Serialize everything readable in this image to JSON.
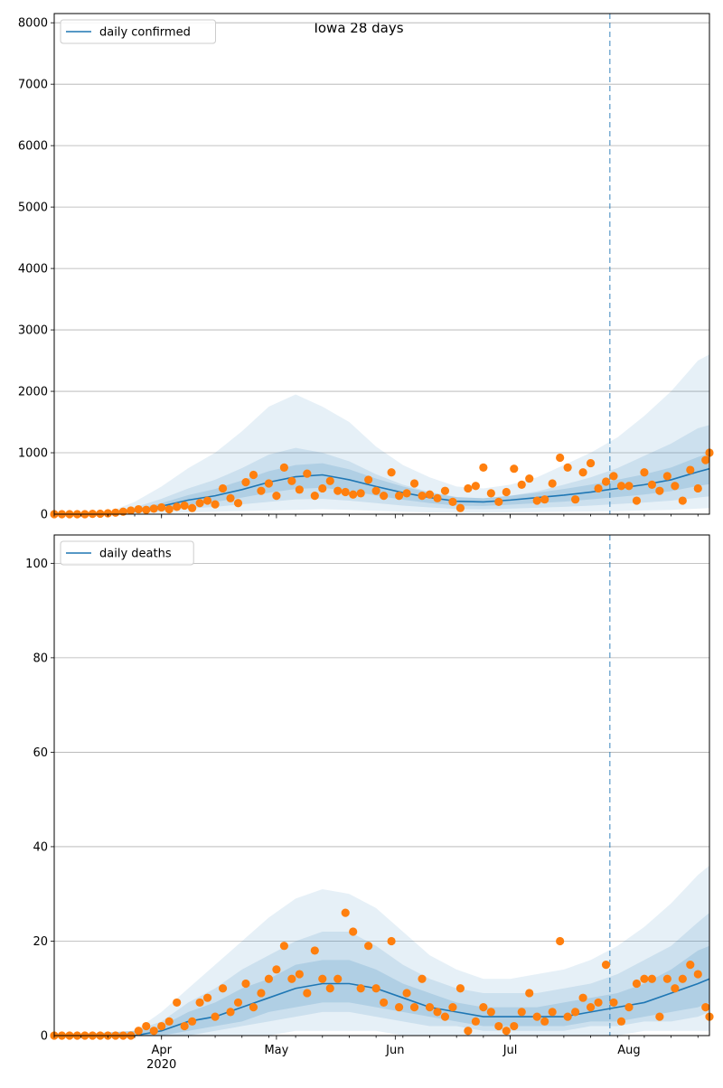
{
  "figure_title": "Iowa 28 days",
  "x_ticks": [
    {
      "date": "2020-04-01",
      "label": "Apr",
      "sublabel": "2020"
    },
    {
      "date": "2020-05-01",
      "label": "May",
      "sublabel": ""
    },
    {
      "date": "2020-06-01",
      "label": "Jun",
      "sublabel": ""
    },
    {
      "date": "2020-07-01",
      "label": "Jul",
      "sublabel": ""
    },
    {
      "date": "2020-08-01",
      "label": "Aug",
      "sublabel": ""
    }
  ],
  "forecast_start": "2020-07-27",
  "colors": {
    "model": "#1f77b4",
    "observed": "#ff7f0e",
    "band": "#1f77b4",
    "grid": "#b0b0b0"
  },
  "chart_data": [
    {
      "type": "line",
      "legend": "daily confirmed",
      "legend_position": "upper-left",
      "x_range": [
        "2020-03-04",
        "2020-08-22"
      ],
      "ylim": [
        0,
        8150
      ],
      "yticks": [
        0,
        1000,
        2000,
        3000,
        4000,
        5000,
        6000,
        7000,
        8000
      ],
      "grid": "horizontal",
      "model_median": {
        "x": [
          "2020-03-04",
          "2020-03-18",
          "2020-03-25",
          "2020-04-01",
          "2020-04-08",
          "2020-04-15",
          "2020-04-22",
          "2020-04-29",
          "2020-05-06",
          "2020-05-13",
          "2020-05-20",
          "2020-05-27",
          "2020-06-03",
          "2020-06-10",
          "2020-06-17",
          "2020-06-24",
          "2020-07-01",
          "2020-07-08",
          "2020-07-15",
          "2020-07-22",
          "2020-07-29",
          "2020-08-05",
          "2020-08-12",
          "2020-08-19",
          "2020-08-22"
        ],
        "y": [
          0,
          10,
          50,
          130,
          230,
          300,
          400,
          520,
          610,
          640,
          560,
          450,
          350,
          270,
          210,
          200,
          230,
          270,
          310,
          360,
          420,
          480,
          560,
          690,
          740
        ]
      },
      "bands": [
        {
          "level": "outer",
          "x": [
            "2020-03-04",
            "2020-03-18",
            "2020-03-25",
            "2020-04-01",
            "2020-04-08",
            "2020-04-15",
            "2020-04-22",
            "2020-04-29",
            "2020-05-06",
            "2020-05-13",
            "2020-05-20",
            "2020-05-27",
            "2020-06-03",
            "2020-06-10",
            "2020-06-17",
            "2020-06-24",
            "2020-07-01",
            "2020-07-08",
            "2020-07-15",
            "2020-07-22",
            "2020-07-29",
            "2020-08-05",
            "2020-08-12",
            "2020-08-19",
            "2020-08-22"
          ],
          "low": [
            0,
            0,
            5,
            15,
            30,
            40,
            50,
            60,
            70,
            80,
            70,
            55,
            40,
            30,
            25,
            25,
            30,
            35,
            40,
            45,
            50,
            60,
            70,
            90,
            100
          ],
          "high": [
            0,
            30,
            200,
            450,
            750,
            1000,
            1350,
            1750,
            1950,
            1750,
            1500,
            1100,
            800,
            600,
            450,
            420,
            480,
            600,
            800,
            1000,
            1250,
            1600,
            2000,
            2500,
            2600
          ]
        },
        {
          "level": "middle",
          "x": [
            "2020-03-04",
            "2020-03-18",
            "2020-03-25",
            "2020-04-01",
            "2020-04-08",
            "2020-04-15",
            "2020-04-22",
            "2020-04-29",
            "2020-05-06",
            "2020-05-13",
            "2020-05-20",
            "2020-05-27",
            "2020-06-03",
            "2020-06-10",
            "2020-06-17",
            "2020-06-24",
            "2020-07-01",
            "2020-07-08",
            "2020-07-15",
            "2020-07-22",
            "2020-07-29",
            "2020-08-05",
            "2020-08-12",
            "2020-08-19",
            "2020-08-22"
          ],
          "low": [
            0,
            0,
            15,
            50,
            90,
            120,
            160,
            200,
            240,
            250,
            220,
            180,
            140,
            110,
            85,
            80,
            90,
            105,
            120,
            140,
            165,
            190,
            220,
            270,
            290
          ],
          "high": [
            0,
            20,
            110,
            250,
            420,
            560,
            750,
            970,
            1080,
            1000,
            860,
            650,
            480,
            360,
            280,
            260,
            300,
            370,
            480,
            600,
            750,
            950,
            1150,
            1400,
            1450
          ]
        },
        {
          "level": "inner",
          "x": [
            "2020-03-04",
            "2020-03-18",
            "2020-03-25",
            "2020-04-01",
            "2020-04-08",
            "2020-04-15",
            "2020-04-22",
            "2020-04-29",
            "2020-05-06",
            "2020-05-13",
            "2020-05-20",
            "2020-05-27",
            "2020-06-03",
            "2020-06-10",
            "2020-06-17",
            "2020-06-24",
            "2020-07-01",
            "2020-07-08",
            "2020-07-15",
            "2020-07-22",
            "2020-07-29",
            "2020-08-05",
            "2020-08-12",
            "2020-08-19",
            "2020-08-22"
          ],
          "low": [
            0,
            5,
            30,
            85,
            150,
            200,
            270,
            350,
            410,
            430,
            380,
            305,
            235,
            180,
            140,
            135,
            155,
            180,
            205,
            240,
            280,
            320,
            375,
            460,
            490
          ],
          "high": [
            0,
            15,
            75,
            180,
            310,
            410,
            550,
            700,
            800,
            830,
            730,
            580,
            450,
            350,
            275,
            260,
            300,
            350,
            410,
            480,
            560,
            650,
            760,
            930,
            990
          ]
        }
      ],
      "observed": {
        "x": [
          "2020-03-04",
          "2020-03-06",
          "2020-03-08",
          "2020-03-10",
          "2020-03-12",
          "2020-03-14",
          "2020-03-16",
          "2020-03-18",
          "2020-03-20",
          "2020-03-22",
          "2020-03-24",
          "2020-03-26",
          "2020-03-28",
          "2020-03-30",
          "2020-04-01",
          "2020-04-03",
          "2020-04-05",
          "2020-04-07",
          "2020-04-09",
          "2020-04-11",
          "2020-04-13",
          "2020-04-15",
          "2020-04-17",
          "2020-04-19",
          "2020-04-21",
          "2020-04-23",
          "2020-04-25",
          "2020-04-27",
          "2020-04-29",
          "2020-05-01",
          "2020-05-03",
          "2020-05-05",
          "2020-05-07",
          "2020-05-09",
          "2020-05-11",
          "2020-05-13",
          "2020-05-15",
          "2020-05-17",
          "2020-05-19",
          "2020-05-21",
          "2020-05-23",
          "2020-05-25",
          "2020-05-27",
          "2020-05-29",
          "2020-05-31",
          "2020-06-02",
          "2020-06-04",
          "2020-06-06",
          "2020-06-08",
          "2020-06-10",
          "2020-06-12",
          "2020-06-14",
          "2020-06-16",
          "2020-06-18",
          "2020-06-20",
          "2020-06-22",
          "2020-06-24",
          "2020-06-26",
          "2020-06-28",
          "2020-06-30",
          "2020-07-02",
          "2020-07-04",
          "2020-07-06",
          "2020-07-08",
          "2020-07-10",
          "2020-07-12",
          "2020-07-14",
          "2020-07-16",
          "2020-07-18",
          "2020-07-20",
          "2020-07-22",
          "2020-07-24",
          "2020-07-26",
          "2020-07-28",
          "2020-07-30",
          "2020-08-01",
          "2020-08-03",
          "2020-08-05",
          "2020-08-07",
          "2020-08-09",
          "2020-08-11",
          "2020-08-13",
          "2020-08-15",
          "2020-08-17",
          "2020-08-19",
          "2020-08-21",
          "2020-08-22"
        ],
        "y": [
          0,
          0,
          0,
          0,
          0,
          5,
          8,
          15,
          25,
          40,
          60,
          80,
          70,
          90,
          110,
          80,
          120,
          140,
          100,
          180,
          220,
          160,
          420,
          260,
          180,
          520,
          640,
          380,
          500,
          300,
          760,
          540,
          400,
          660,
          300,
          420,
          540,
          380,
          360,
          320,
          340,
          560,
          380,
          300,
          680,
          300,
          340,
          500,
          300,
          320,
          260,
          380,
          200,
          100,
          420,
          460,
          760,
          340,
          200,
          360,
          740,
          480,
          580,
          220,
          240,
          500,
          920,
          760,
          240,
          680,
          830,
          420,
          530,
          620,
          460,
          460,
          220,
          680,
          480,
          380,
          620,
          460,
          220,
          720,
          420,
          880,
          1000
        ]
      }
    },
    {
      "type": "line",
      "legend": "daily deaths",
      "legend_position": "upper-left",
      "x_range": [
        "2020-03-04",
        "2020-08-22"
      ],
      "ylim": [
        0,
        106
      ],
      "yticks": [
        0,
        20,
        40,
        60,
        80,
        100
      ],
      "grid": "horizontal",
      "model_median": {
        "x": [
          "2020-03-04",
          "2020-03-25",
          "2020-04-01",
          "2020-04-08",
          "2020-04-15",
          "2020-04-22",
          "2020-04-29",
          "2020-05-06",
          "2020-05-13",
          "2020-05-20",
          "2020-05-27",
          "2020-06-03",
          "2020-06-10",
          "2020-06-17",
          "2020-06-24",
          "2020-07-01",
          "2020-07-08",
          "2020-07-15",
          "2020-07-22",
          "2020-07-29",
          "2020-08-05",
          "2020-08-12",
          "2020-08-19",
          "2020-08-22"
        ],
        "y": [
          0,
          0,
          1,
          3,
          4,
          6,
          8,
          10,
          11,
          11,
          10,
          8,
          6,
          5,
          4,
          4,
          4,
          4,
          5,
          6,
          7,
          9,
          11,
          12
        ]
      },
      "bands": [
        {
          "level": "outer",
          "x": [
            "2020-03-04",
            "2020-03-25",
            "2020-04-01",
            "2020-04-08",
            "2020-04-15",
            "2020-04-22",
            "2020-04-29",
            "2020-05-06",
            "2020-05-13",
            "2020-05-20",
            "2020-05-27",
            "2020-06-03",
            "2020-06-10",
            "2020-06-17",
            "2020-06-24",
            "2020-07-01",
            "2020-07-08",
            "2020-07-15",
            "2020-07-22",
            "2020-07-29",
            "2020-08-05",
            "2020-08-12",
            "2020-08-19",
            "2020-08-22"
          ],
          "low": [
            0,
            0,
            0,
            0,
            0,
            0,
            0,
            1,
            1,
            1,
            1,
            0,
            0,
            0,
            0,
            0,
            0,
            0,
            0,
            0,
            1,
            1,
            1,
            1
          ],
          "high": [
            0,
            1,
            5,
            10,
            15,
            20,
            25,
            29,
            31,
            30,
            27,
            22,
            17,
            14,
            12,
            12,
            13,
            14,
            16,
            19,
            23,
            28,
            34,
            36
          ]
        },
        {
          "level": "middle",
          "x": [
            "2020-03-04",
            "2020-03-25",
            "2020-04-01",
            "2020-04-08",
            "2020-04-15",
            "2020-04-22",
            "2020-04-29",
            "2020-05-06",
            "2020-05-13",
            "2020-05-20",
            "2020-05-27",
            "2020-06-03",
            "2020-06-10",
            "2020-06-17",
            "2020-06-24",
            "2020-07-01",
            "2020-07-08",
            "2020-07-15",
            "2020-07-22",
            "2020-07-29",
            "2020-08-05",
            "2020-08-12",
            "2020-08-19",
            "2020-08-22"
          ],
          "low": [
            0,
            0,
            0,
            0,
            1,
            2,
            3,
            4,
            5,
            5,
            4,
            3,
            2,
            2,
            1,
            1,
            1,
            1,
            2,
            2,
            3,
            3,
            4,
            5
          ],
          "high": [
            0,
            1,
            3,
            7,
            10,
            14,
            17,
            20,
            22,
            22,
            19,
            15,
            12,
            10,
            9,
            9,
            9,
            10,
            11,
            13,
            16,
            19,
            24,
            26
          ]
        },
        {
          "level": "inner",
          "x": [
            "2020-03-04",
            "2020-03-25",
            "2020-04-01",
            "2020-04-08",
            "2020-04-15",
            "2020-04-22",
            "2020-04-29",
            "2020-05-06",
            "2020-05-13",
            "2020-05-20",
            "2020-05-27",
            "2020-06-03",
            "2020-06-10",
            "2020-06-17",
            "2020-06-24",
            "2020-07-01",
            "2020-07-08",
            "2020-07-15",
            "2020-07-22",
            "2020-07-29",
            "2020-08-05",
            "2020-08-12",
            "2020-08-19",
            "2020-08-22"
          ],
          "low": [
            0,
            0,
            0,
            1,
            2,
            3,
            5,
            6,
            7,
            7,
            6,
            5,
            4,
            3,
            2,
            2,
            2,
            2,
            3,
            3,
            4,
            5,
            6,
            7
          ],
          "high": [
            0,
            1,
            2,
            5,
            7,
            10,
            12,
            15,
            16,
            16,
            14,
            11,
            9,
            7,
            6,
            6,
            6,
            7,
            8,
            9,
            11,
            14,
            18,
            19
          ]
        }
      ],
      "observed": {
        "x": [
          "2020-03-04",
          "2020-03-06",
          "2020-03-08",
          "2020-03-10",
          "2020-03-12",
          "2020-03-14",
          "2020-03-16",
          "2020-03-18",
          "2020-03-20",
          "2020-03-22",
          "2020-03-24",
          "2020-03-26",
          "2020-03-28",
          "2020-03-30",
          "2020-04-01",
          "2020-04-03",
          "2020-04-05",
          "2020-04-07",
          "2020-04-09",
          "2020-04-11",
          "2020-04-13",
          "2020-04-15",
          "2020-04-17",
          "2020-04-19",
          "2020-04-21",
          "2020-04-23",
          "2020-04-25",
          "2020-04-27",
          "2020-04-29",
          "2020-05-01",
          "2020-05-03",
          "2020-05-05",
          "2020-05-07",
          "2020-05-09",
          "2020-05-11",
          "2020-05-13",
          "2020-05-15",
          "2020-05-17",
          "2020-05-19",
          "2020-05-21",
          "2020-05-23",
          "2020-05-25",
          "2020-05-27",
          "2020-05-29",
          "2020-05-31",
          "2020-06-02",
          "2020-06-04",
          "2020-06-06",
          "2020-06-08",
          "2020-06-10",
          "2020-06-12",
          "2020-06-14",
          "2020-06-16",
          "2020-06-18",
          "2020-06-20",
          "2020-06-22",
          "2020-06-24",
          "2020-06-26",
          "2020-06-28",
          "2020-06-30",
          "2020-07-02",
          "2020-07-04",
          "2020-07-06",
          "2020-07-08",
          "2020-07-10",
          "2020-07-12",
          "2020-07-14",
          "2020-07-16",
          "2020-07-18",
          "2020-07-20",
          "2020-07-22",
          "2020-07-24",
          "2020-07-26",
          "2020-07-28",
          "2020-07-30",
          "2020-08-01",
          "2020-08-03",
          "2020-08-05",
          "2020-08-07",
          "2020-08-09",
          "2020-08-11",
          "2020-08-13",
          "2020-08-15",
          "2020-08-17",
          "2020-08-19",
          "2020-08-21",
          "2020-08-22"
        ],
        "y": [
          0,
          0,
          0,
          0,
          0,
          0,
          0,
          0,
          0,
          0,
          0,
          1,
          2,
          1,
          2,
          3,
          7,
          2,
          3,
          7,
          8,
          4,
          10,
          5,
          7,
          11,
          6,
          9,
          12,
          14,
          19,
          12,
          13,
          9,
          18,
          12,
          10,
          12,
          26,
          22,
          10,
          19,
          10,
          7,
          20,
          6,
          9,
          6,
          12,
          6,
          5,
          4,
          6,
          10,
          1,
          3,
          6,
          5,
          2,
          1,
          2,
          5,
          9,
          4,
          3,
          5,
          20,
          4,
          5,
          8,
          6,
          7,
          15,
          7,
          3,
          6,
          11,
          12,
          12,
          4,
          12,
          10,
          12,
          15,
          13,
          6,
          4
        ]
      }
    }
  ]
}
